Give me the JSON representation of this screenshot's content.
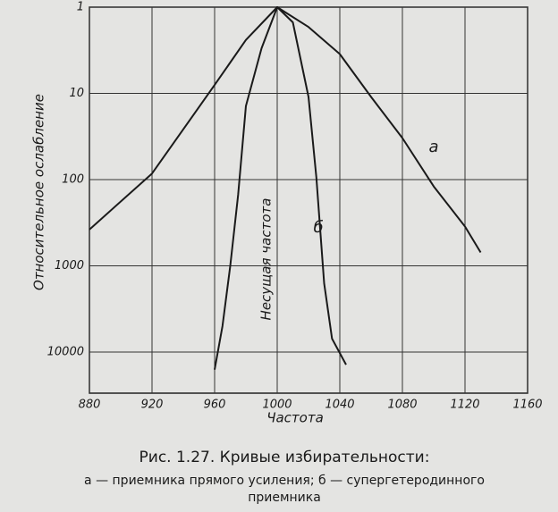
{
  "chart_data": {
    "type": "line",
    "title": "Рис. 1.27. Кривые избирательности:",
    "caption": [
      "а — приемника прямого усиления; б — супергетеродинного",
      "приемника"
    ],
    "x_label": "Частота",
    "y_label": "Относительное ослабление",
    "annotation": "Несущая частота",
    "xlim": [
      880,
      1160
    ],
    "xticks": [
      880,
      920,
      960,
      1000,
      1040,
      1080,
      1120,
      1160
    ],
    "ylim": [
      1,
      30000
    ],
    "yticks": [
      1,
      10,
      100,
      1000,
      10000
    ],
    "y_log": true,
    "y_inverted": true,
    "grid": true,
    "series": [
      {
        "name": "а",
        "color": "#1a1a1a",
        "x": [
          880,
          920,
          960,
          980,
          1000,
          1020,
          1040,
          1060,
          1080,
          1100,
          1120,
          1130
        ],
        "values": [
          380,
          85,
          8,
          2.4,
          1,
          1.7,
          3.5,
          11,
          33,
          120,
          350,
          700
        ]
      },
      {
        "name": "б",
        "color": "#1a1a1a",
        "x": [
          960,
          965,
          970,
          975,
          980,
          990,
          1000,
          1010,
          1020,
          1025,
          1030,
          1035,
          1044
        ],
        "values": [
          16000,
          5000,
          1000,
          150,
          14,
          3,
          1,
          1.5,
          11,
          95,
          1600,
          7000,
          14000
        ]
      }
    ]
  }
}
